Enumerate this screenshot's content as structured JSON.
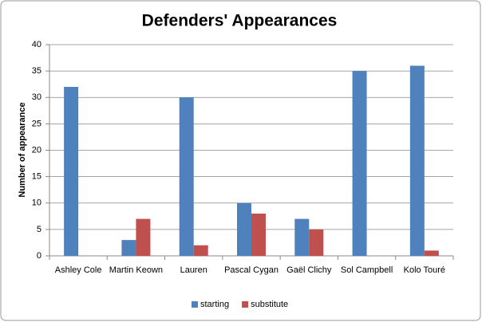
{
  "chart_data": {
    "type": "bar",
    "title": "Defenders' Appearances",
    "y_label": "Number of appearance",
    "categories": [
      "Ashley Cole",
      "Martin Keown",
      "Lauren",
      "Pascal Cygan",
      "Gaël Clichy",
      "Sol Campbell",
      "Kolo Touré"
    ],
    "series": [
      {
        "name": "starting",
        "color": "#4f81bd",
        "values": [
          32,
          3,
          30,
          10,
          7,
          35,
          36
        ]
      },
      {
        "name": "substitute",
        "color": "#c0504d",
        "values": [
          0,
          7,
          2,
          8,
          5,
          0,
          1
        ]
      }
    ],
    "ylim": [
      0,
      40
    ],
    "yticks": [
      0,
      5,
      10,
      15,
      20,
      25,
      30,
      35,
      40
    ],
    "grid": true,
    "legend": "bottom"
  }
}
